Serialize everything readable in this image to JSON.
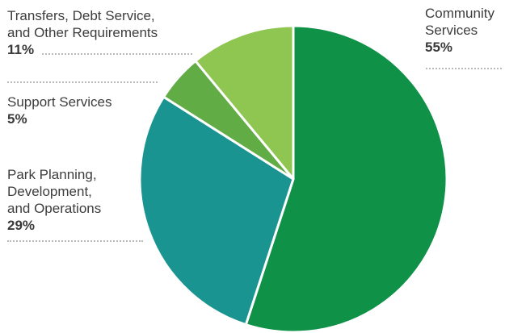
{
  "chart_data": {
    "type": "pie",
    "slices": [
      {
        "label": "Community\nServices",
        "percent_label": "55%",
        "value": 55,
        "color": "#0f9148"
      },
      {
        "label": "Park Planning,\nDevelopment,\nand Operations",
        "percent_label": "29%",
        "value": 29,
        "color": "#1a9491"
      },
      {
        "label": "Support Services",
        "percent_label": "5%",
        "value": 5,
        "color": "#62ac46"
      },
      {
        "label": "Transfers, Debt Service,\nand Other Requirements",
        "percent_label": "11%",
        "value": 11,
        "color": "#8fc651"
      }
    ]
  }
}
